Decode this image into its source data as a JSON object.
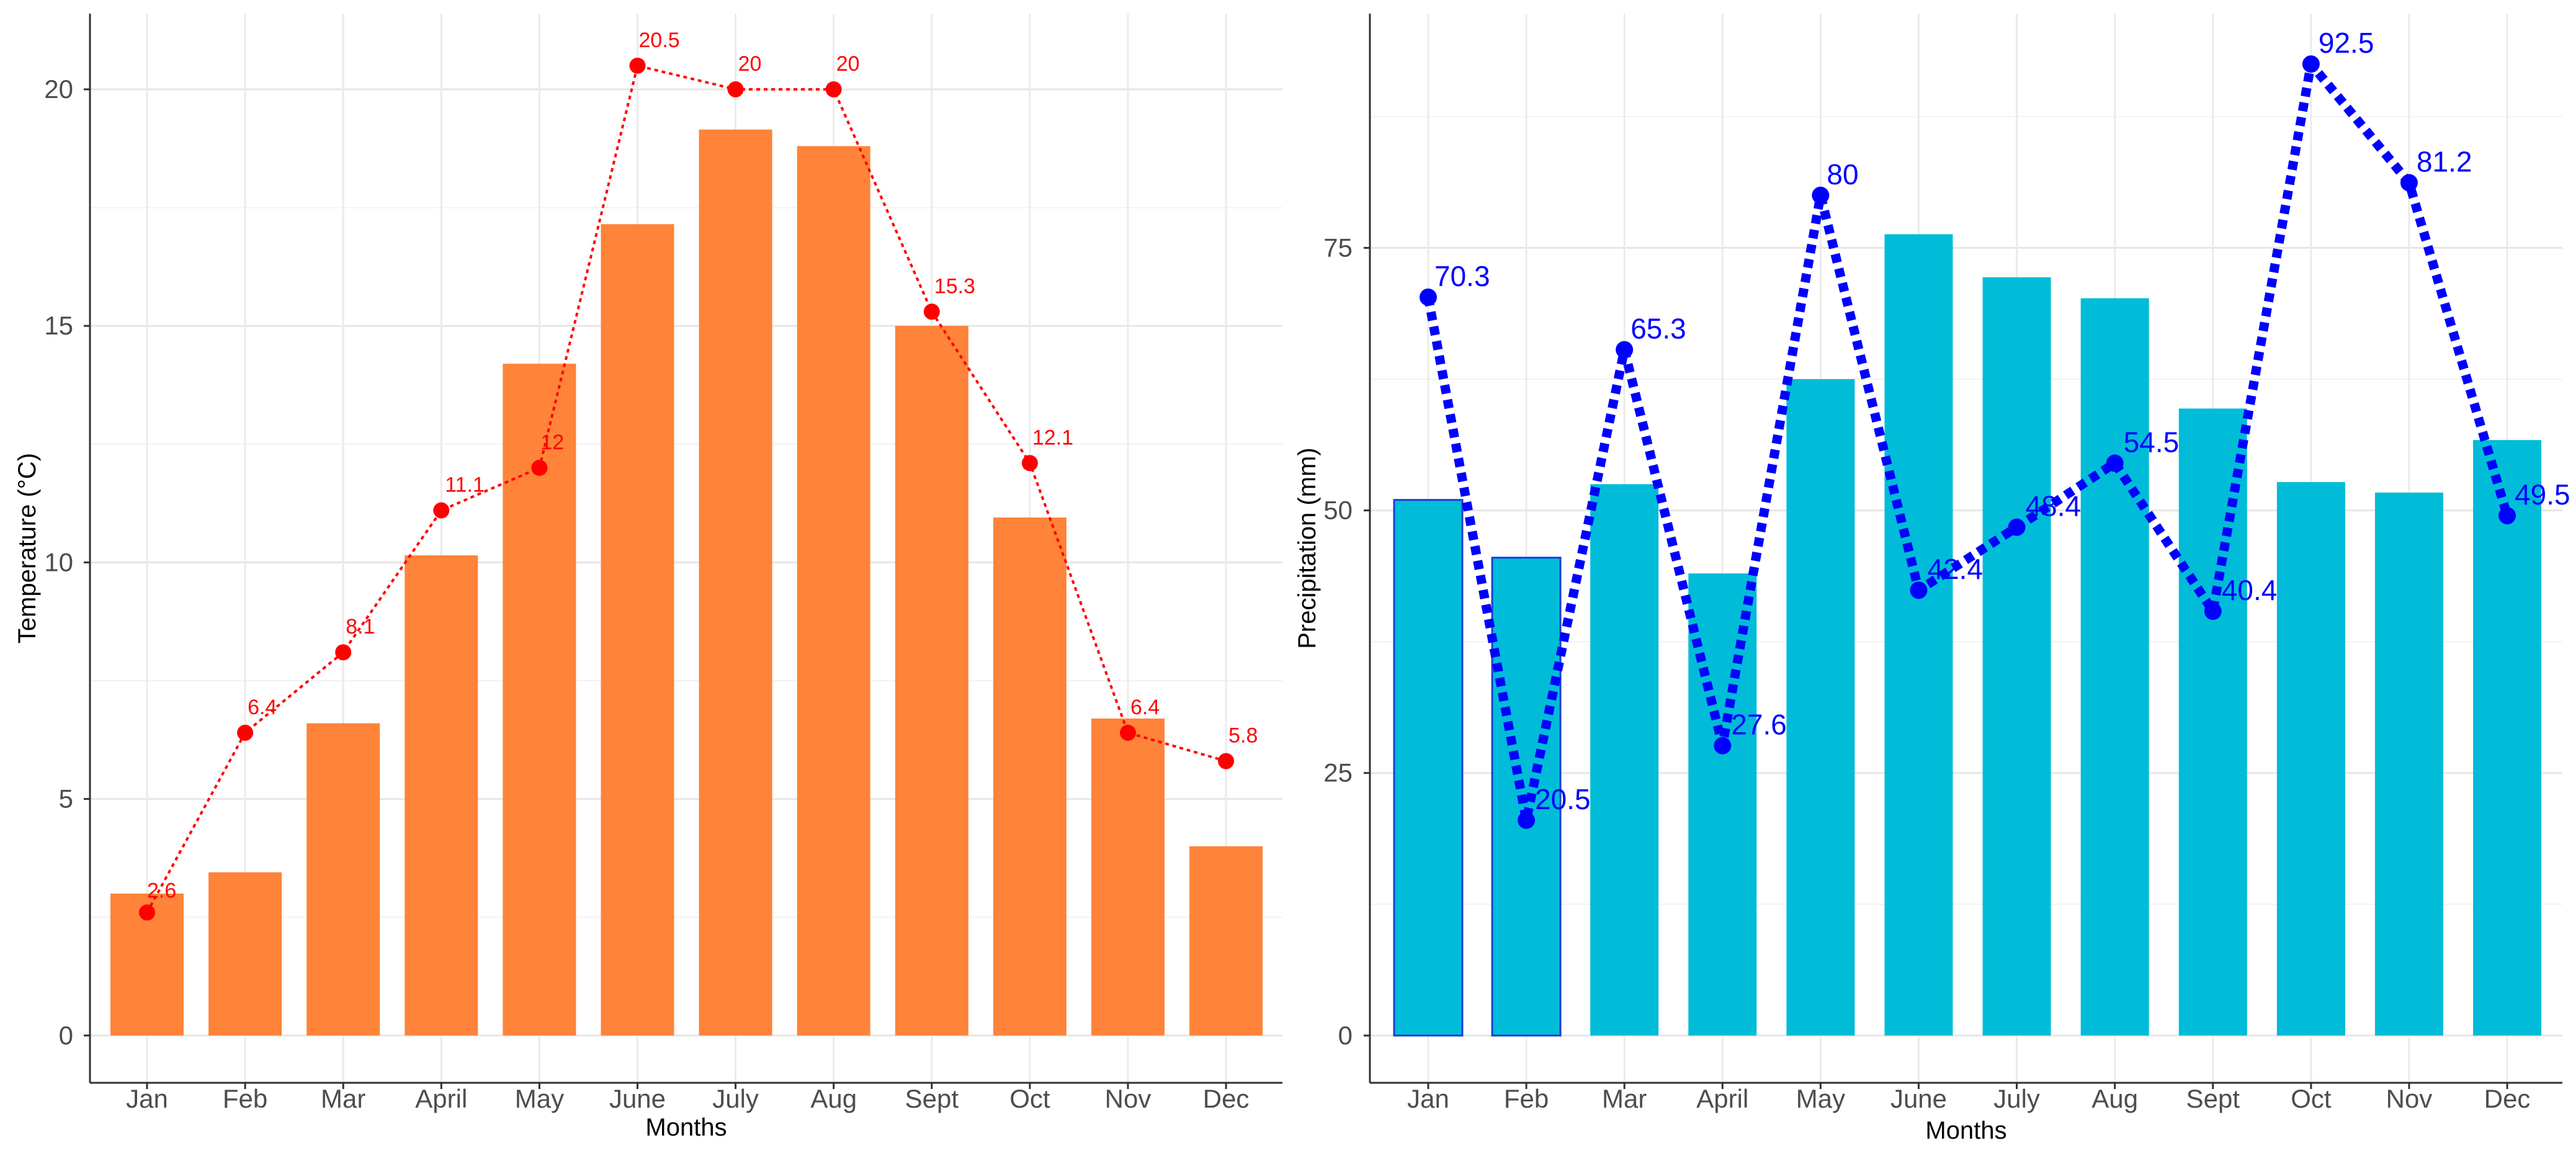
{
  "chart_data": [
    {
      "type": "bar",
      "overlay": "line",
      "categories": [
        "Jan",
        "Feb",
        "Mar",
        "April",
        "May",
        "June",
        "July",
        "Aug",
        "Sept",
        "Oct",
        "Nov",
        "Dec"
      ],
      "bar_values": [
        3.0,
        3.45,
        6.6,
        10.15,
        14.2,
        17.15,
        19.15,
        18.8,
        15.0,
        10.95,
        6.7,
        4.0
      ],
      "line_values": [
        2.6,
        6.4,
        8.1,
        11.1,
        12,
        20.5,
        20,
        20,
        15.3,
        12.1,
        6.4,
        5.8
      ],
      "line_labels": [
        "2.6",
        "6.4",
        "8.1",
        "11.1",
        "12",
        "20.5",
        "20",
        "20",
        "15.3",
        "12.1",
        "6.4",
        "5.8"
      ],
      "xlabel": "Months",
      "ylabel": "Temperature (°C)",
      "yticks": [
        0,
        5,
        10,
        15,
        20
      ],
      "ytick_labels": [
        "0",
        "5",
        "10",
        "15",
        "20"
      ],
      "ylim": [
        -1.0,
        21.6
      ],
      "bar_color": "#ff8339",
      "line_color": "#ff0000"
    },
    {
      "type": "bar",
      "overlay": "line",
      "categories": [
        "Jan",
        "Feb",
        "Mar",
        "April",
        "May",
        "June",
        "July",
        "Aug",
        "Sept",
        "Oct",
        "Nov",
        "Dec"
      ],
      "bar_values": [
        51,
        45.5,
        52.5,
        44,
        62.5,
        76.3,
        72.2,
        70.2,
        59.7,
        52.7,
        51.7,
        56.7
      ],
      "line_values": [
        70.3,
        20.5,
        65.3,
        27.6,
        80,
        42.4,
        48.4,
        54.5,
        40.4,
        92.5,
        81.2,
        49.5
      ],
      "line_labels": [
        "70.3",
        "20.5",
        "65.3",
        "27.6",
        "80",
        "42.4",
        "48.4",
        "54.5",
        "40.4",
        "92.5",
        "81.2",
        "49.5"
      ],
      "xlabel": "Months",
      "ylabel": "Precipitation (mm)",
      "yticks": [
        0,
        25,
        50,
        75
      ],
      "ytick_labels": [
        "0",
        "25",
        "50",
        "75"
      ],
      "ylim": [
        -4.5,
        97.3
      ],
      "bar_color": "#00bcd8",
      "line_color": "#0000ff"
    }
  ]
}
